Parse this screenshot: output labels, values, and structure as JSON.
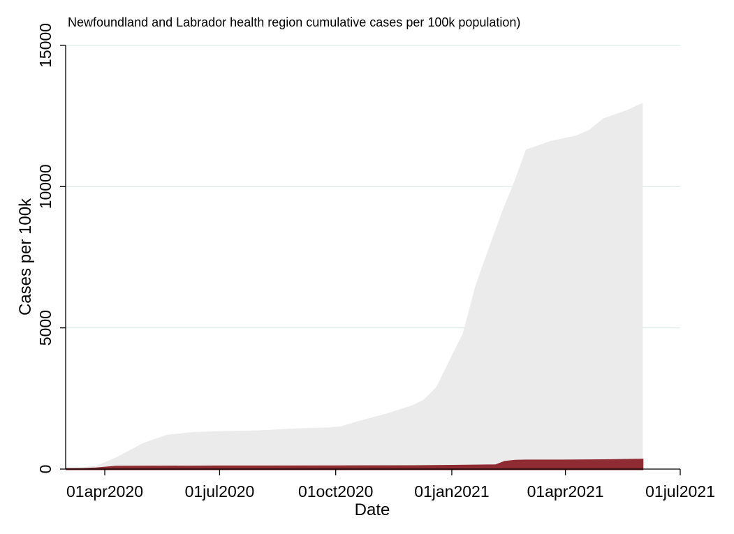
{
  "chart_data": {
    "type": "area",
    "title": "Newfoundland and Labrador health region cumulative cases per 100k population)",
    "xlabel": "Date",
    "ylabel": "Cases per 100k",
    "ylim": [
      0,
      15000
    ],
    "xlim": [
      "2020-03-01",
      "2021-07-01"
    ],
    "y_ticks": [
      0,
      5000,
      10000,
      15000
    ],
    "x_ticks": [
      {
        "label": "01apr2020",
        "date": "2020-04-01"
      },
      {
        "label": "01jul2020",
        "date": "2020-07-01"
      },
      {
        "label": "01oct2020",
        "date": "2020-10-01"
      },
      {
        "label": "01jan2021",
        "date": "2021-01-01"
      },
      {
        "label": "01apr2021",
        "date": "2021-04-01"
      },
      {
        "label": "01jul2021",
        "date": "2021-07-01"
      }
    ],
    "grid": true,
    "series": [
      {
        "role": "background-range",
        "color": "#ebebeb",
        "x": [
          "2020-03-01",
          "2020-03-25",
          "2020-04-10",
          "2020-05-01",
          "2020-05-20",
          "2020-06-10",
          "2020-07-01",
          "2020-08-01",
          "2020-09-01",
          "2020-09-25",
          "2020-10-05",
          "2020-10-20",
          "2020-11-10",
          "2020-12-01",
          "2020-12-10",
          "2020-12-20",
          "2020-12-31",
          "2021-01-10",
          "2021-01-20",
          "2021-02-01",
          "2021-02-10",
          "2021-02-20",
          "2021-03-01",
          "2021-03-20",
          "2021-04-10",
          "2021-04-20",
          "2021-05-01",
          "2021-05-20",
          "2021-06-01"
        ],
        "values": [
          0,
          100,
          400,
          900,
          1200,
          1300,
          1330,
          1360,
          1430,
          1460,
          1500,
          1700,
          1950,
          2250,
          2450,
          2900,
          3900,
          4800,
          6500,
          8000,
          9100,
          10200,
          11300,
          11600,
          11800,
          12000,
          12400,
          12700,
          12950
        ]
      },
      {
        "role": "highlighted-region",
        "color": "#8e2b33",
        "x": [
          "2020-03-01",
          "2020-03-15",
          "2020-03-25",
          "2020-04-10",
          "2020-07-01",
          "2020-10-01",
          "2020-12-01",
          "2021-01-01",
          "2021-02-05",
          "2021-02-12",
          "2021-02-20",
          "2021-03-01",
          "2021-04-01",
          "2021-05-01",
          "2021-06-01"
        ],
        "values": [
          0,
          0,
          20,
          80,
          90,
          95,
          100,
          110,
          130,
          250,
          290,
          300,
          300,
          310,
          330
        ]
      }
    ]
  }
}
